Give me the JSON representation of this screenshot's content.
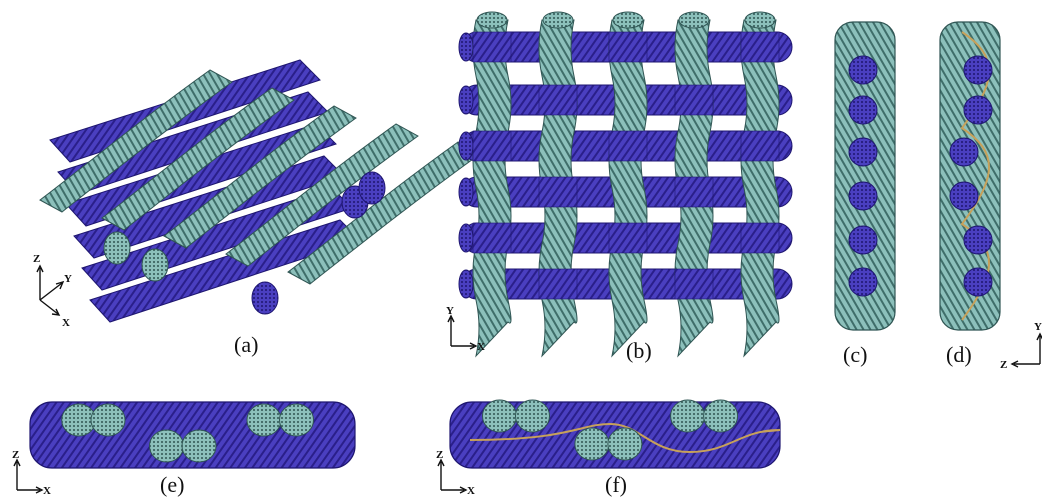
{
  "panels": [
    {
      "id": "a",
      "label": "(a)",
      "axes": {
        "up": "Z",
        "right": "Y",
        "down": "X"
      }
    },
    {
      "id": "b",
      "label": "(b)",
      "axes": {
        "up": "Y",
        "right": "X"
      }
    },
    {
      "id": "c",
      "label": "(c)"
    },
    {
      "id": "d",
      "label": "(d)"
    },
    {
      "id": "e",
      "label": "(e)",
      "axes": {
        "up": "Z",
        "right": "X"
      }
    },
    {
      "id": "f",
      "label": "(f)",
      "axes": {
        "up": "Z",
        "right": "X"
      }
    }
  ],
  "cd_axes": {
    "up": "Y",
    "left": "Z"
  },
  "colors": {
    "weft": "#4a3fc0",
    "weft_dark": "#2a1f8a",
    "warp": "#7fb3ae",
    "warp_dark": "#3f6e6a",
    "resin_line": "#c7a15a"
  }
}
